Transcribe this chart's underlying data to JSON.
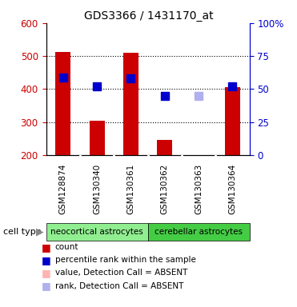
{
  "title": "GDS3366 / 1431170_at",
  "samples": [
    "GSM128874",
    "GSM130340",
    "GSM130361",
    "GSM130362",
    "GSM130363",
    "GSM130364"
  ],
  "groups": [
    "neocortical astrocytes",
    "cerebellar astrocytes"
  ],
  "ylim_left": [
    200,
    600
  ],
  "ylim_right": [
    0,
    100
  ],
  "yticks_left": [
    200,
    300,
    400,
    500,
    600
  ],
  "yticks_right": [
    0,
    25,
    50,
    75,
    100
  ],
  "ytick_labels_right": [
    "0",
    "25",
    "50",
    "75",
    "100%"
  ],
  "bar_color": "#cc0000",
  "bar_absent_color": "#ffb3b3",
  "blue_color": "#0000cc",
  "blue_absent_color": "#b0b0ee",
  "count_values": [
    512,
    303,
    511,
    245,
    200,
    406
  ],
  "count_base": 200,
  "percentile_values": [
    435,
    408,
    432,
    378,
    380,
    408
  ],
  "percentile_present": [
    true,
    true,
    true,
    true,
    false,
    true
  ],
  "absent_value_bars": [
    false,
    false,
    false,
    false,
    true,
    false
  ],
  "absent_rank_dots": [
    false,
    false,
    false,
    false,
    true,
    false
  ],
  "bar_width": 0.45,
  "plot_bg_color": "#ffffff",
  "sample_box_color": "#d4d4d4",
  "group1_color": "#90EE90",
  "group2_color": "#44cc44",
  "left_label_color": "#cc0000",
  "right_label_color": "#0000cc",
  "grid_yticks": [
    300,
    400,
    500
  ],
  "legend_items": [
    {
      "label": "count",
      "color": "#cc0000"
    },
    {
      "label": "percentile rank within the sample",
      "color": "#0000cc"
    },
    {
      "label": "value, Detection Call = ABSENT",
      "color": "#ffb3b3"
    },
    {
      "label": "rank, Detection Call = ABSENT",
      "color": "#b0b0ee"
    }
  ]
}
